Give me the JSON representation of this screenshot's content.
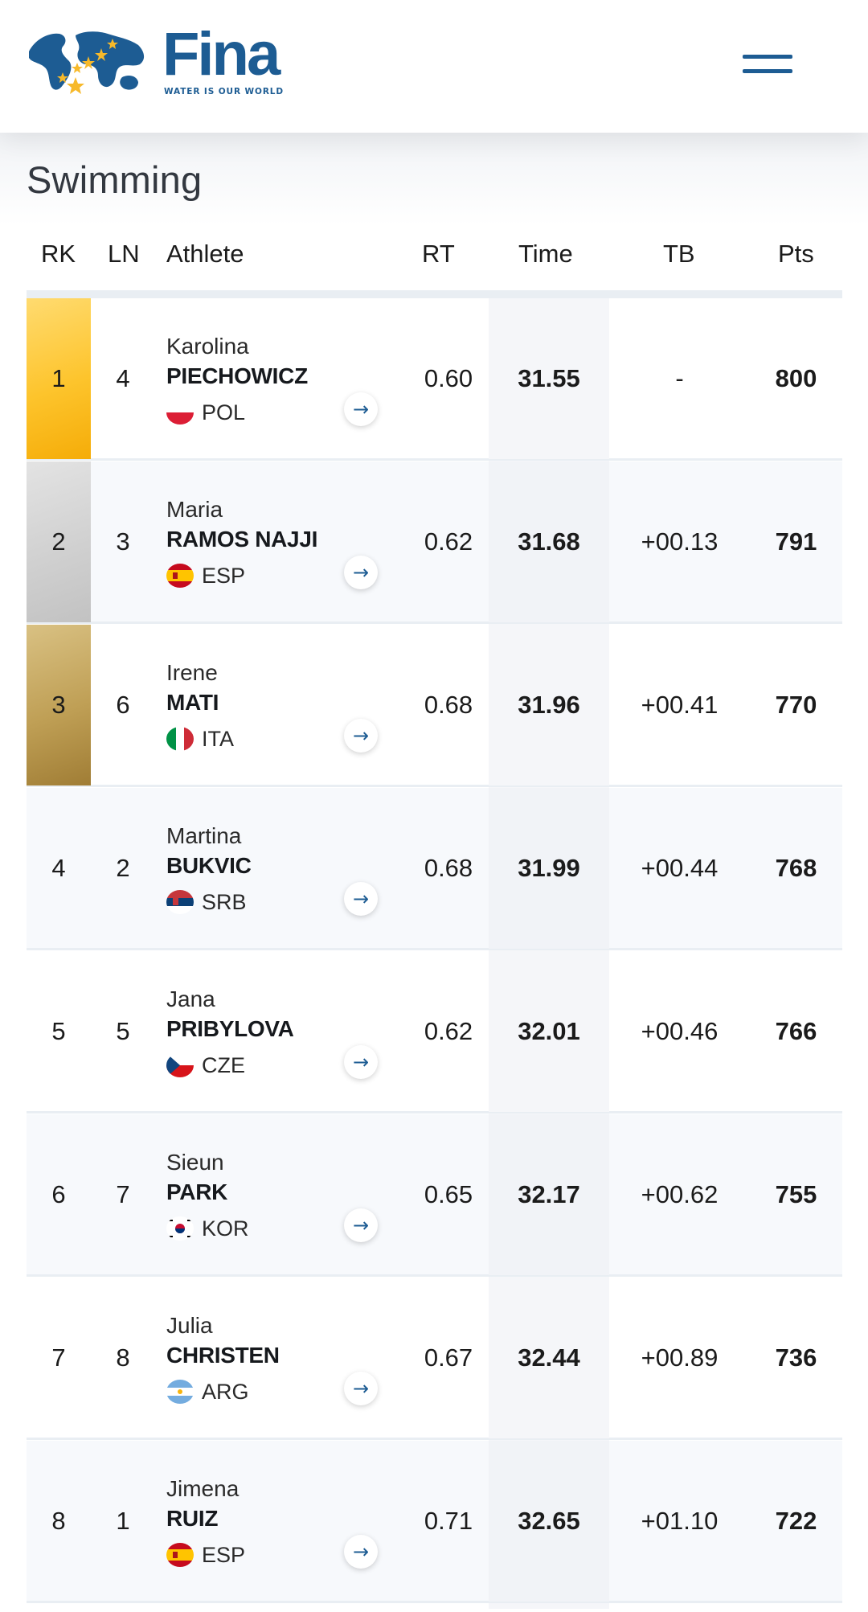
{
  "header": {
    "brand": "Fina",
    "tagline": "WATER IS OUR WORLD",
    "menu_icon": "hamburger-menu-icon",
    "colors": {
      "brand_blue": "#1d5c93",
      "star_yellow": "#f7b92a"
    }
  },
  "section": {
    "title": "Swimming"
  },
  "table": {
    "columns": {
      "rk": "RK",
      "ln": "LN",
      "athlete": "Athlete",
      "rt": "RT",
      "time": "Time",
      "tb": "TB",
      "pts": "Pts"
    },
    "rows": [
      {
        "rk": "1",
        "ln": "4",
        "first": "Karolina",
        "last": "PIECHOWICZ",
        "nat": "POL",
        "rt": "0.60",
        "time": "31.55",
        "tb": "-",
        "pts": "800",
        "medal": "gold"
      },
      {
        "rk": "2",
        "ln": "3",
        "first": "Maria",
        "last": "RAMOS NAJJI",
        "nat": "ESP",
        "rt": "0.62",
        "time": "31.68",
        "tb": "+00.13",
        "pts": "791",
        "medal": "silver"
      },
      {
        "rk": "3",
        "ln": "6",
        "first": "Irene",
        "last": "MATI",
        "nat": "ITA",
        "rt": "0.68",
        "time": "31.96",
        "tb": "+00.41",
        "pts": "770",
        "medal": "bronze"
      },
      {
        "rk": "4",
        "ln": "2",
        "first": "Martina",
        "last": "BUKVIC",
        "nat": "SRB",
        "rt": "0.68",
        "time": "31.99",
        "tb": "+00.44",
        "pts": "768"
      },
      {
        "rk": "5",
        "ln": "5",
        "first": "Jana",
        "last": "PRIBYLOVA",
        "nat": "CZE",
        "rt": "0.62",
        "time": "32.01",
        "tb": "+00.46",
        "pts": "766"
      },
      {
        "rk": "6",
        "ln": "7",
        "first": "Sieun",
        "last": "PARK",
        "nat": "KOR",
        "rt": "0.65",
        "time": "32.17",
        "tb": "+00.62",
        "pts": "755"
      },
      {
        "rk": "7",
        "ln": "8",
        "first": "Julia",
        "last": "CHRISTEN",
        "nat": "ARG",
        "rt": "0.67",
        "time": "32.44",
        "tb": "+00.89",
        "pts": "736"
      },
      {
        "rk": "8",
        "ln": "1",
        "first": "Jimena",
        "last": "RUIZ",
        "nat": "ESP",
        "rt": "0.71",
        "time": "32.65",
        "tb": "+01.10",
        "pts": "722"
      }
    ]
  }
}
